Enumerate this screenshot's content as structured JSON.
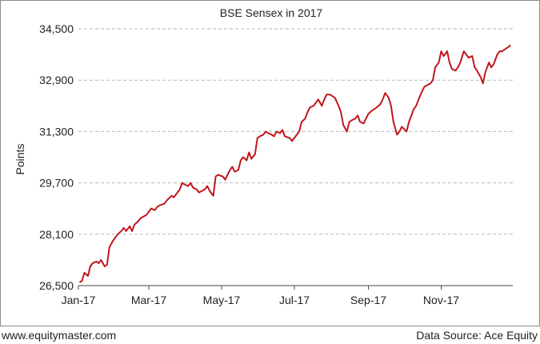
{
  "footer": {
    "site": "www.equitymaster.com",
    "source": "Data Source: Ace Equity"
  },
  "chart_data": {
    "type": "line",
    "title": "BSE Sensex in 2017",
    "xlabel": "",
    "ylabel": "Points",
    "ylim": [
      26500,
      34500
    ],
    "yticks": [
      26500,
      28100,
      29700,
      31300,
      32900,
      34500
    ],
    "ytick_labels": [
      "26,500",
      "28,100",
      "29,700",
      "31,300",
      "32,900",
      "34,500"
    ],
    "xlim": [
      "2017-01-01",
      "2017-12-31"
    ],
    "xticks": [
      "2017-01-01",
      "2017-03-01",
      "2017-05-01",
      "2017-07-01",
      "2017-09-01",
      "2017-11-01"
    ],
    "xtick_labels": [
      "Jan-17",
      "Mar-17",
      "May-17",
      "Jul-17",
      "Sep-17",
      "Nov-17"
    ],
    "grid": true,
    "line_color": "#c0161d",
    "series": [
      {
        "x": [
          "2017-01-02",
          "2017-01-04",
          "2017-01-06",
          "2017-01-09",
          "2017-01-11",
          "2017-01-13",
          "2017-01-16",
          "2017-01-18",
          "2017-01-20",
          "2017-01-23",
          "2017-01-25",
          "2017-01-27",
          "2017-01-30",
          "2017-02-01",
          "2017-02-03",
          "2017-02-06",
          "2017-02-08",
          "2017-02-10",
          "2017-02-13",
          "2017-02-15",
          "2017-02-17",
          "2017-02-20",
          "2017-02-22",
          "2017-02-27",
          "2017-03-01",
          "2017-03-03",
          "2017-03-06",
          "2017-03-08",
          "2017-03-10",
          "2017-03-14",
          "2017-03-16",
          "2017-03-20",
          "2017-03-22",
          "2017-03-24",
          "2017-03-27",
          "2017-03-29",
          "2017-03-31",
          "2017-04-03",
          "2017-04-05",
          "2017-04-07",
          "2017-04-10",
          "2017-04-12",
          "2017-04-17",
          "2017-04-19",
          "2017-04-21",
          "2017-04-24",
          "2017-04-26",
          "2017-04-28",
          "2017-05-02",
          "2017-05-04",
          "2017-05-08",
          "2017-05-10",
          "2017-05-12",
          "2017-05-15",
          "2017-05-17",
          "2017-05-19",
          "2017-05-22",
          "2017-05-24",
          "2017-05-26",
          "2017-05-29",
          "2017-05-31",
          "2017-06-02",
          "2017-06-05",
          "2017-06-07",
          "2017-06-09",
          "2017-06-12",
          "2017-06-14",
          "2017-06-16",
          "2017-06-19",
          "2017-06-21",
          "2017-06-23",
          "2017-06-27",
          "2017-06-29",
          "2017-07-03",
          "2017-07-05",
          "2017-07-07",
          "2017-07-10",
          "2017-07-12",
          "2017-07-14",
          "2017-07-17",
          "2017-07-19",
          "2017-07-21",
          "2017-07-24",
          "2017-07-26",
          "2017-07-28",
          "2017-07-31",
          "2017-08-02",
          "2017-08-04",
          "2017-08-07",
          "2017-08-09",
          "2017-08-11",
          "2017-08-14",
          "2017-08-16",
          "2017-08-18",
          "2017-08-21",
          "2017-08-23",
          "2017-08-25",
          "2017-08-28",
          "2017-08-30",
          "2017-09-01",
          "2017-09-04",
          "2017-09-06",
          "2017-09-08",
          "2017-09-11",
          "2017-09-13",
          "2017-09-15",
          "2017-09-18",
          "2017-09-20",
          "2017-09-22",
          "2017-09-25",
          "2017-09-27",
          "2017-09-29",
          "2017-10-03",
          "2017-10-05",
          "2017-10-09",
          "2017-10-11",
          "2017-10-13",
          "2017-10-16",
          "2017-10-18",
          "2017-10-23",
          "2017-10-25",
          "2017-10-27",
          "2017-10-30",
          "2017-11-01",
          "2017-11-03",
          "2017-11-06",
          "2017-11-08",
          "2017-11-10",
          "2017-11-13",
          "2017-11-15",
          "2017-11-17",
          "2017-11-20",
          "2017-11-22",
          "2017-11-24",
          "2017-11-27",
          "2017-11-29",
          "2017-12-01",
          "2017-12-04",
          "2017-12-06",
          "2017-12-08",
          "2017-12-11",
          "2017-12-13",
          "2017-12-15",
          "2017-12-18",
          "2017-12-20",
          "2017-12-22",
          "2017-12-26",
          "2017-12-28",
          "2017-12-29"
        ],
        "y": [
          26600,
          26650,
          26900,
          26800,
          27100,
          27200,
          27250,
          27200,
          27300,
          27100,
          27150,
          27700,
          27900,
          28000,
          28100,
          28200,
          28300,
          28200,
          28350,
          28200,
          28400,
          28500,
          28600,
          28700,
          28800,
          28900,
          28850,
          28950,
          29000,
          29050,
          29150,
          29300,
          29250,
          29350,
          29500,
          29700,
          29650,
          29600,
          29700,
          29550,
          29500,
          29400,
          29500,
          29600,
          29450,
          29300,
          29900,
          29950,
          29900,
          29800,
          30100,
          30200,
          30050,
          30100,
          30400,
          30500,
          30400,
          30650,
          30450,
          30600,
          31100,
          31150,
          31200,
          31300,
          31250,
          31200,
          31150,
          31300,
          31250,
          31350,
          31150,
          31100,
          31000,
          31200,
          31300,
          31600,
          31700,
          31900,
          32050,
          32100,
          32200,
          32300,
          32100,
          32300,
          32450,
          32450,
          32400,
          32350,
          32100,
          31900,
          31500,
          31300,
          31600,
          31650,
          31700,
          31800,
          31600,
          31550,
          31700,
          31850,
          31950,
          32000,
          32050,
          32150,
          32300,
          32500,
          32350,
          32100,
          31600,
          31200,
          31300,
          31450,
          31300,
          31600,
          32000,
          32100,
          32300,
          32550,
          32700,
          32800,
          32900,
          33300,
          33450,
          33800,
          33650,
          33800,
          33450,
          33250,
          33200,
          33300,
          33450,
          33800,
          33700,
          33600,
          33650,
          33300,
          33200,
          33000,
          32800,
          33150,
          33450,
          33300,
          33400,
          33700,
          33800,
          33800,
          33900,
          33950,
          34000
        ]
      }
    ]
  }
}
